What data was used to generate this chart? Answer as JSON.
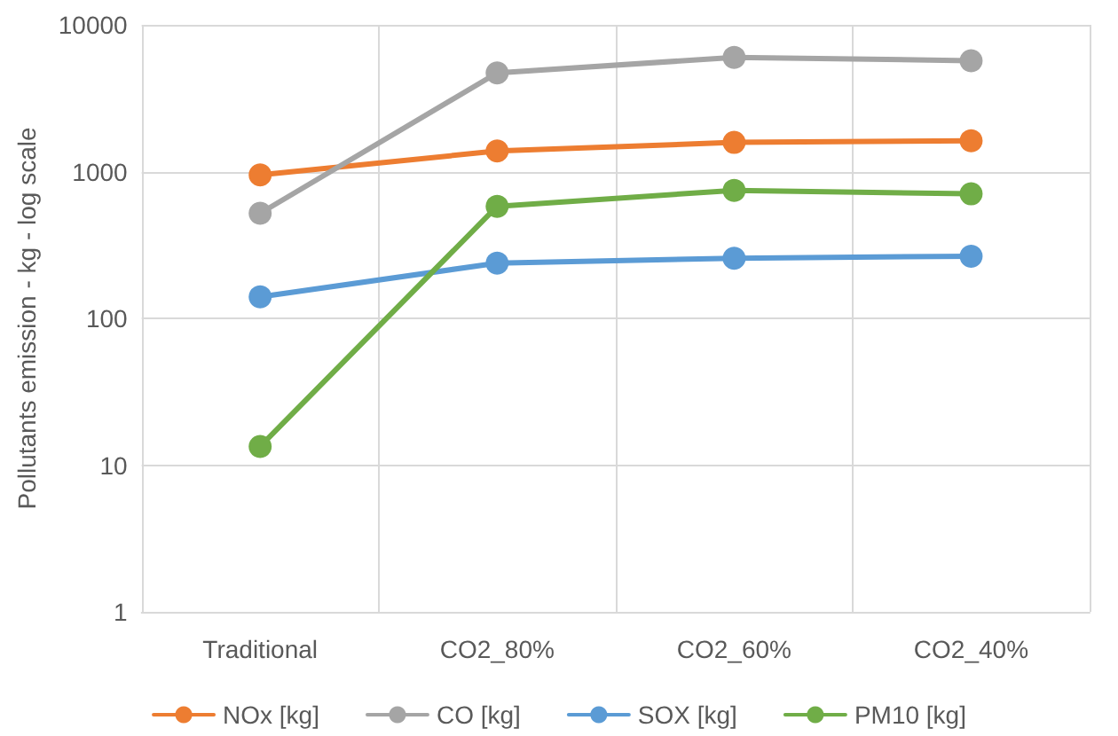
{
  "chart_data": {
    "type": "line",
    "ylabel": "Pollutants emission - kg - log scale",
    "categories": [
      "Traditional",
      "CO2_80%",
      "CO2_60%",
      "CO2_40%"
    ],
    "series": [
      {
        "name": "NOx [kg]",
        "color": "#ed7d31",
        "values": [
          950,
          1380,
          1580,
          1620
        ]
      },
      {
        "name": "CO [kg]",
        "color": "#a5a5a5",
        "values": [
          520,
          4700,
          6000,
          5700
        ]
      },
      {
        "name": "SOX [kg]",
        "color": "#5b9bd5",
        "values": [
          140,
          238,
          257,
          265
        ]
      },
      {
        "name": "PM10 [kg]",
        "color": "#70ad47",
        "values": [
          13.4,
          580,
          745,
          705
        ]
      }
    ],
    "log": true,
    "ylim": [
      1,
      10000
    ],
    "yticks": [
      1,
      10,
      100,
      1000,
      10000
    ],
    "grid": true,
    "legend": "bottom",
    "marker": "circle",
    "line_style": "solid"
  }
}
